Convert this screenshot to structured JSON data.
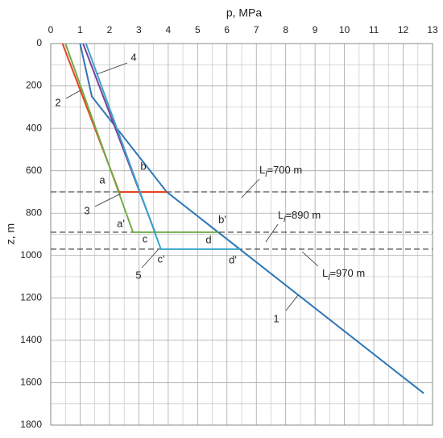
{
  "chart_data": {
    "type": "line",
    "xlabel": "p, MPa",
    "ylabel": "z, m",
    "xlim": [
      0,
      13
    ],
    "ylim": [
      0,
      1800
    ],
    "y_inverted": true,
    "x_axis_position": "top",
    "xticks": [
      0,
      1,
      2,
      3,
      4,
      5,
      6,
      7,
      8,
      9,
      10,
      11,
      12,
      13
    ],
    "yticks": [
      0,
      200,
      400,
      600,
      800,
      1000,
      1200,
      1400,
      1600,
      1800
    ],
    "grid": true,
    "series": [
      {
        "name": "1",
        "color": "#2e75b6",
        "x": [
          1.0,
          1.4,
          3.95,
          12.7
        ],
        "z": [
          0,
          250,
          700,
          1650
        ]
      },
      {
        "name": "2",
        "color": "#e8431f",
        "x": [
          0.4,
          2.33,
          3.95
        ],
        "z": [
          0,
          700,
          700
        ]
      },
      {
        "name": "3",
        "color": "#70ad47",
        "x": [
          0.5,
          2.8,
          5.7
        ],
        "z": [
          0,
          890,
          890
        ]
      },
      {
        "name": "4",
        "color": "#7a3f9e",
        "x": [
          1.1,
          3.55
        ],
        "z": [
          0,
          890
        ]
      },
      {
        "name": "5",
        "color": "#3aa5c9",
        "x": [
          1.2,
          3.75,
          6.45
        ],
        "z": [
          0,
          970,
          970
        ]
      }
    ],
    "levels": [
      {
        "value": 700,
        "main": "L",
        "sub": "l",
        "rest": "=700 m"
      },
      {
        "value": 890,
        "main": "L",
        "sub": "l",
        "rest": "=890 m"
      },
      {
        "value": 970,
        "main": "L",
        "sub": "l",
        "rest": "=970 m"
      }
    ],
    "point_labels": [
      "a",
      "b",
      "c",
      "d",
      "a'",
      "b'",
      "c'",
      "d'"
    ]
  }
}
